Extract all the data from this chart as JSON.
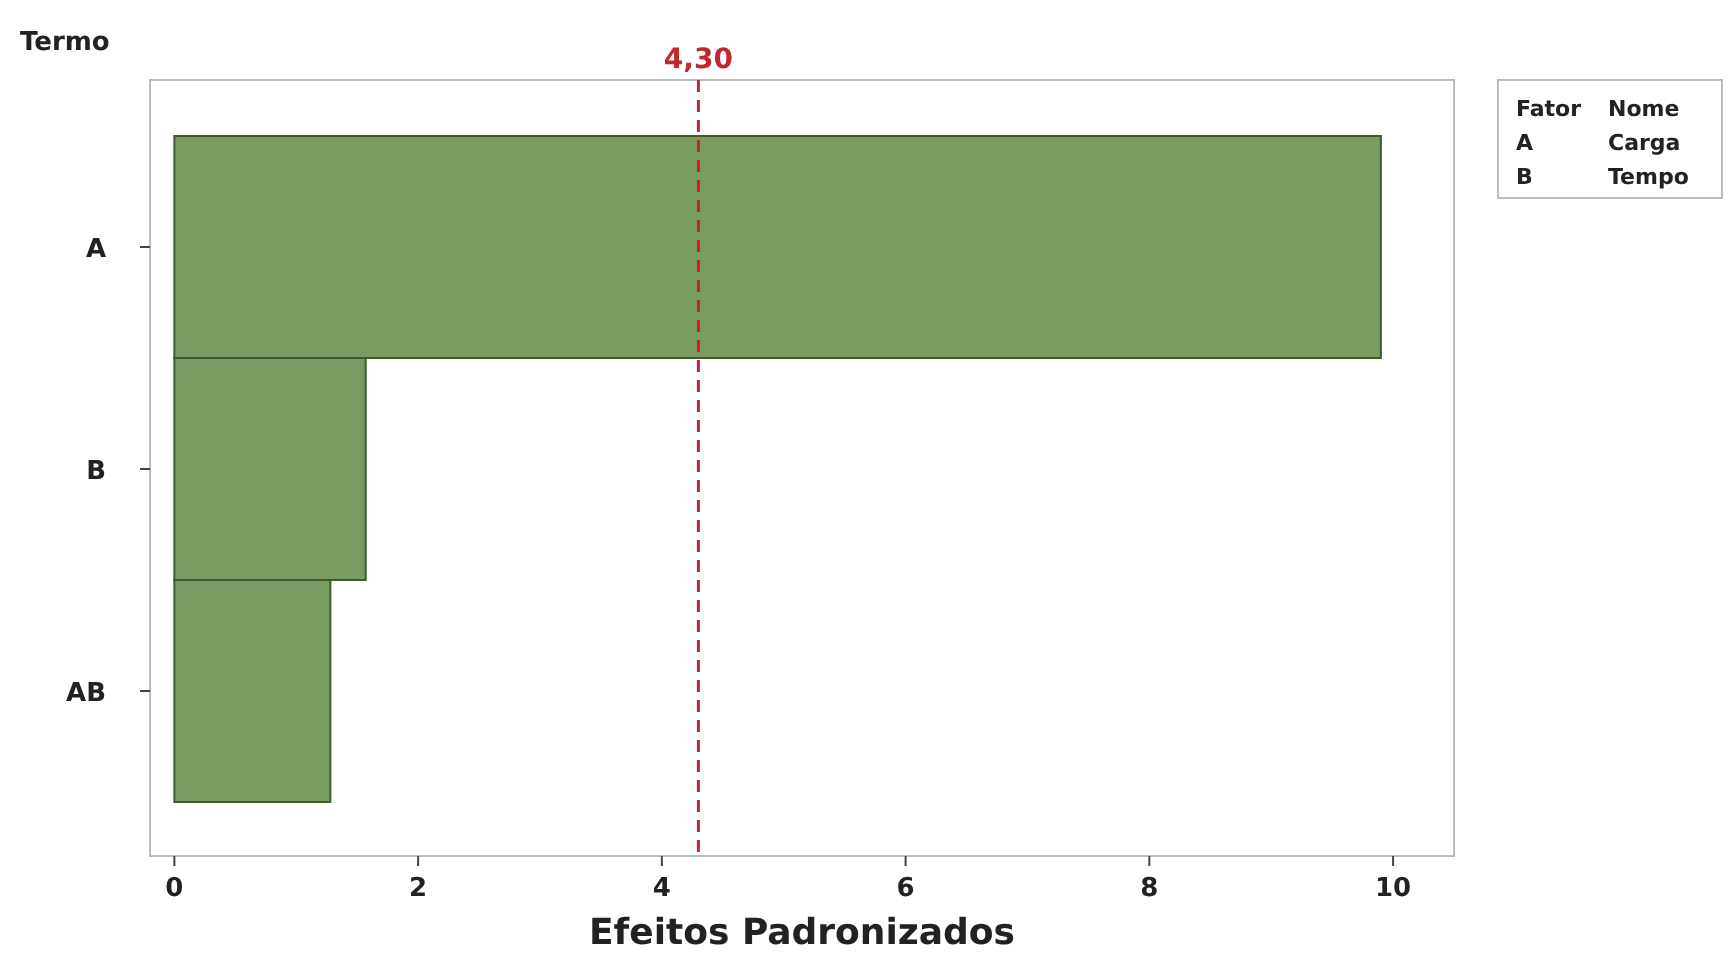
{
  "chart_data": {
    "type": "bar",
    "orientation": "horizontal",
    "ylabel": "Termo",
    "xlabel": "Efeitos Padronizados",
    "categories": [
      "A",
      "B",
      "AB"
    ],
    "values": [
      9.9,
      1.57,
      1.28
    ],
    "color": "#7a9c62",
    "xlim": [
      -0.2,
      10.5
    ],
    "xticks": [
      0,
      2,
      4,
      6,
      8,
      10
    ],
    "ref_lines": [
      {
        "axis": "x",
        "value": 4.3,
        "label": "4,30",
        "color": "#c0282d",
        "line_style": "dashed"
      }
    ],
    "grid": false,
    "annotations": [
      "Fator",
      "Nome",
      "A",
      "Carga",
      "B",
      "Tempo"
    ]
  }
}
